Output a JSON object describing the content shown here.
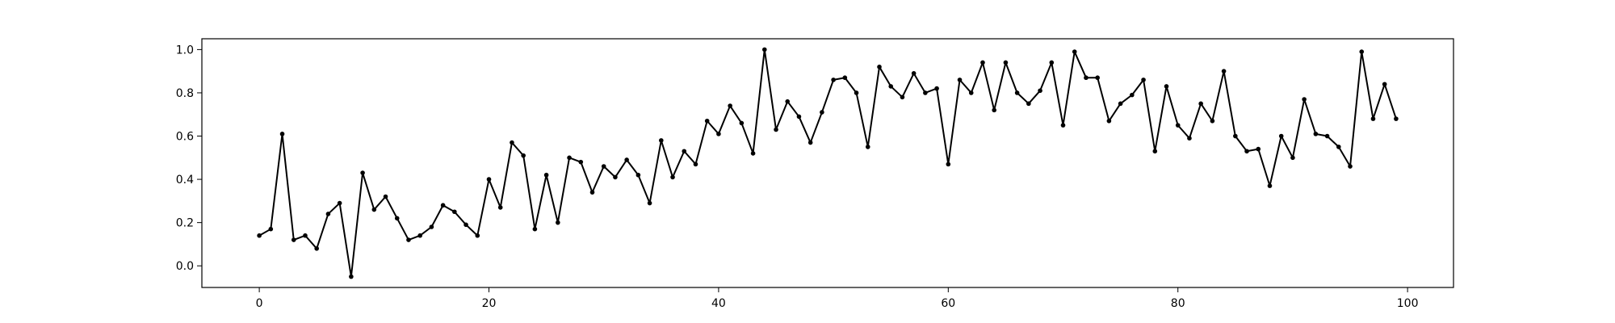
{
  "chart_data": {
    "type": "line",
    "title": "",
    "xlabel": "",
    "ylabel": "",
    "xlim": [
      -5,
      104
    ],
    "ylim": [
      -0.1,
      1.05
    ],
    "xticks": [
      0,
      20,
      40,
      60,
      80,
      100
    ],
    "yticks": [
      0.0,
      0.2,
      0.4,
      0.6,
      0.8,
      1.0
    ],
    "xtick_labels": [
      "0",
      "20",
      "40",
      "60",
      "80",
      "100"
    ],
    "ytick_labels": [
      "0.0",
      "0.2",
      "0.4",
      "0.6",
      "0.8",
      "1.0"
    ],
    "grid": false,
    "legend": "none",
    "marker": "point",
    "colors": {
      "line": "#000000",
      "axes": "#000000",
      "background": "#ffffff"
    },
    "series": [
      {
        "values": [
          0.14,
          0.17,
          0.61,
          0.12,
          0.14,
          0.08,
          0.24,
          0.29,
          -0.05,
          0.43,
          0.26,
          0.32,
          0.22,
          0.12,
          0.14,
          0.18,
          0.28,
          0.25,
          0.19,
          0.14,
          0.4,
          0.27,
          0.57,
          0.51,
          0.17,
          0.42,
          0.2,
          0.5,
          0.48,
          0.34,
          0.46,
          0.41,
          0.49,
          0.42,
          0.29,
          0.58,
          0.41,
          0.53,
          0.47,
          0.67,
          0.61,
          0.74,
          0.66,
          0.52,
          1.0,
          0.63,
          0.76,
          0.69,
          0.57,
          0.71,
          0.86,
          0.87,
          0.8,
          0.55,
          0.92,
          0.83,
          0.78,
          0.89,
          0.8,
          0.82,
          0.47,
          0.86,
          0.8,
          0.94,
          0.72,
          0.94,
          0.8,
          0.75,
          0.81,
          0.94,
          0.65,
          0.99,
          0.87,
          0.87,
          0.67,
          0.75,
          0.79,
          0.86,
          0.53,
          0.83,
          0.65,
          0.59,
          0.75,
          0.67,
          0.9,
          0.6,
          0.53,
          0.54,
          0.37,
          0.6,
          0.5,
          0.77,
          0.61,
          0.6,
          0.55,
          0.46,
          0.99,
          0.68,
          0.84,
          0.68
        ]
      }
    ]
  }
}
